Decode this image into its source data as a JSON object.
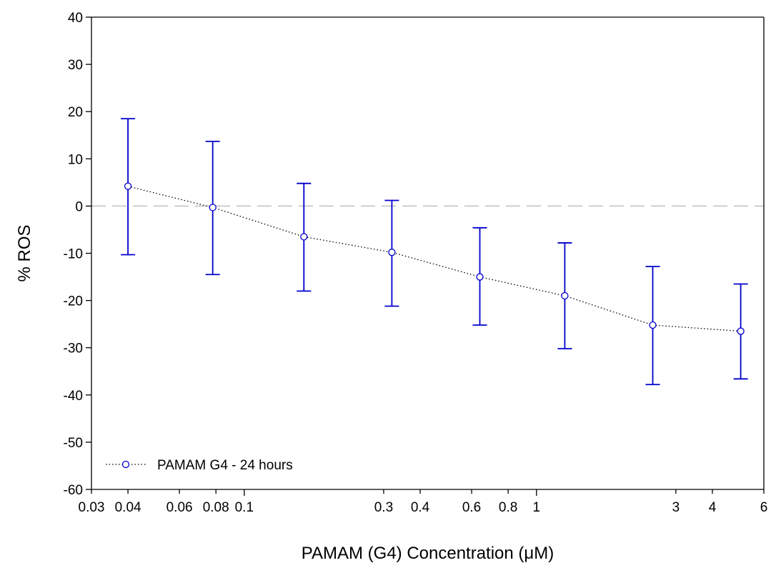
{
  "chart_data": {
    "type": "line",
    "title": "",
    "xlabel": "PAMAM (G4) Concentration (μM)",
    "ylabel": "% ROS",
    "xscale": "log",
    "xlim": [
      0.03,
      6
    ],
    "ylim": [
      -60,
      40
    ],
    "x_ticks": [
      0.03,
      0.04,
      0.06,
      0.08,
      0.1,
      0.3,
      0.4,
      0.6,
      0.8,
      1,
      3,
      4,
      6
    ],
    "x_tick_labels": [
      "0.03",
      "0.04",
      "0.06",
      "0.08",
      "0.1",
      "0.3",
      "0.4",
      "0.6",
      "0.8",
      "1",
      "3",
      "4",
      "6"
    ],
    "y_ticks": [
      -60,
      -50,
      -40,
      -30,
      -20,
      -10,
      0,
      10,
      20,
      30,
      40
    ],
    "y_tick_labels": [
      "-60",
      "-50",
      "-40",
      "-30",
      "-20",
      "-10",
      "0",
      "10",
      "20",
      "30",
      "40"
    ],
    "reference_line": {
      "y": 0,
      "style": "dashed",
      "color": "#c0c0c0"
    },
    "grid": false,
    "legend_position": "bottom-left",
    "series": [
      {
        "name": "PAMAM G4 - 24 hours",
        "color": "#0000cc",
        "line_color": "#000000",
        "line_style": "dotted",
        "marker": "open-circle",
        "x": [
          0.04,
          0.078,
          0.16,
          0.32,
          0.64,
          1.25,
          2.5,
          5.0
        ],
        "y": [
          4.2,
          -0.3,
          -6.5,
          -9.8,
          -15.0,
          -19.0,
          -25.2,
          -26.5
        ],
        "error_low": [
          -10.3,
          -14.5,
          -18.0,
          -21.2,
          -25.2,
          -30.2,
          -37.8,
          -36.6
        ],
        "error_high": [
          18.5,
          13.7,
          4.8,
          1.2,
          -4.6,
          -7.8,
          -12.8,
          -16.5
        ]
      }
    ]
  }
}
